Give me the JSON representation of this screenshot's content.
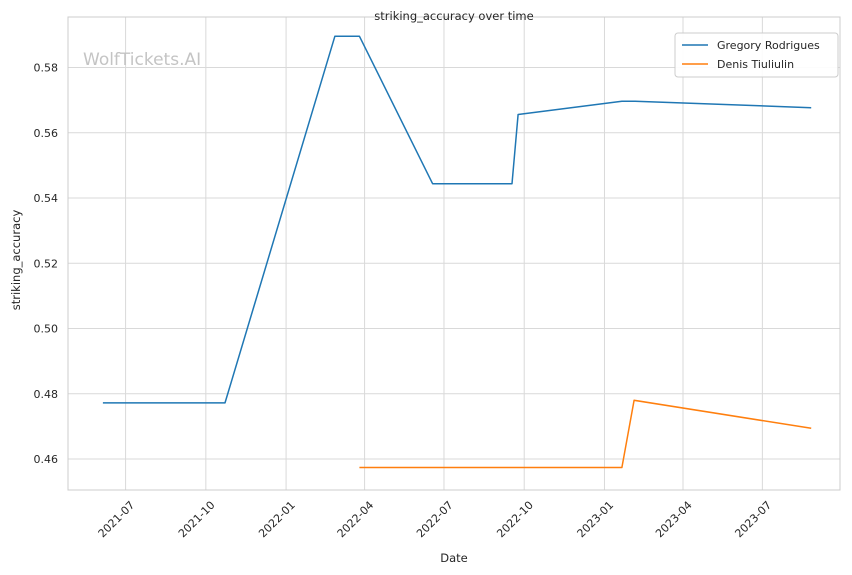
{
  "watermark": "WolfTickets.AI",
  "chart_data": {
    "type": "line",
    "title": "striking_accuracy over time",
    "xlabel": "Date",
    "ylabel": "striking_accuracy",
    "x_type": "date",
    "xlim": [
      "2021-04-26",
      "2023-09-28"
    ],
    "ylim": [
      0.4505,
      0.5955
    ],
    "x_ticks": [
      "2021-07-01",
      "2021-10-01",
      "2022-01-01",
      "2022-04-01",
      "2022-07-01",
      "2022-10-01",
      "2023-01-01",
      "2023-04-01",
      "2023-07-01"
    ],
    "x_tick_labels": [
      "2021-07",
      "2021-10",
      "2022-01",
      "2022-04",
      "2022-07",
      "2022-10",
      "2023-01",
      "2023-04",
      "2023-07"
    ],
    "y_ticks": [
      0.46,
      0.48,
      0.5,
      0.52,
      0.54,
      0.56,
      0.58
    ],
    "y_tick_labels": [
      "0.46",
      "0.48",
      "0.50",
      "0.52",
      "0.54",
      "0.56",
      "0.58"
    ],
    "grid": true,
    "legend_position": "top-right",
    "series": [
      {
        "name": "Gregory Rodrigues",
        "color": "#1f77b4",
        "points": [
          {
            "x": "2021-06-05",
            "y": 0.4772
          },
          {
            "x": "2021-10-23",
            "y": 0.4772
          },
          {
            "x": "2022-02-26",
            "y": 0.5896
          },
          {
            "x": "2022-03-26",
            "y": 0.5896
          },
          {
            "x": "2022-06-18",
            "y": 0.5444
          },
          {
            "x": "2022-09-17",
            "y": 0.5444
          },
          {
            "x": "2022-09-24",
            "y": 0.5656
          },
          {
            "x": "2023-01-21",
            "y": 0.5697
          },
          {
            "x": "2023-02-04",
            "y": 0.5697
          },
          {
            "x": "2023-08-26",
            "y": 0.5677
          }
        ]
      },
      {
        "name": "Denis Tiuliulin",
        "color": "#ff7f0e",
        "points": [
          {
            "x": "2022-03-26",
            "y": 0.4574
          },
          {
            "x": "2023-01-21",
            "y": 0.4574
          },
          {
            "x": "2023-02-04",
            "y": 0.478
          },
          {
            "x": "2023-08-26",
            "y": 0.4694
          }
        ]
      }
    ]
  }
}
